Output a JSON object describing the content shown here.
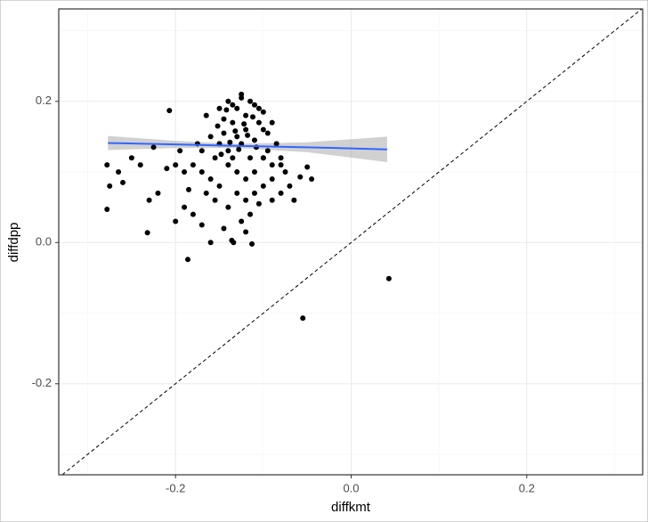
{
  "chart_data": {
    "type": "scatter",
    "x_label": "diffkmt",
    "y_label": "diffdpp",
    "xlim": [
      -0.333,
      0.332
    ],
    "ylim": [
      -0.329,
      0.331
    ],
    "xticks": [
      -0.2,
      {
        "value": 0,
        "label": "0.0"
      },
      0.2
    ],
    "yticks": [
      -0.2,
      {
        "value": 0,
        "label": "0.0"
      },
      0.2
    ],
    "grid": true,
    "color": "#000000",
    "x": [
      -0.13,
      -0.12,
      -0.14,
      -0.125,
      -0.135,
      -0.115,
      -0.145,
      -0.11,
      -0.15,
      -0.12,
      -0.13,
      -0.14,
      -0.125,
      -0.105,
      -0.1,
      -0.095,
      -0.09,
      -0.155,
      -0.16,
      -0.165,
      -0.15,
      -0.14,
      -0.13,
      -0.12,
      -0.11,
      -0.1,
      -0.105,
      -0.115,
      -0.135,
      -0.145,
      -0.128,
      -0.118,
      -0.138,
      -0.108,
      -0.148,
      -0.122,
      -0.132,
      -0.112,
      -0.142,
      -0.152,
      -0.085,
      -0.08,
      -0.075,
      -0.09,
      -0.17,
      -0.175,
      -0.18,
      -0.17,
      -0.16,
      -0.15,
      -0.13,
      -0.12,
      -0.11,
      -0.1,
      -0.09,
      -0.07,
      -0.065,
      -0.08,
      -0.14,
      -0.125,
      -0.115,
      -0.105,
      -0.155,
      -0.165,
      -0.19,
      -0.2,
      -0.195,
      -0.21,
      -0.22,
      -0.23,
      -0.24,
      -0.25,
      -0.26,
      -0.265,
      -0.225,
      -0.185,
      -0.19,
      -0.2,
      -0.18,
      -0.17,
      -0.145,
      -0.12,
      -0.1,
      -0.095,
      -0.125,
      -0.135,
      -0.11,
      -0.1,
      -0.09,
      -0.08,
      0.043,
      -0.055,
      -0.186,
      -0.278,
      -0.275,
      -0.278,
      -0.232,
      -0.207,
      -0.058,
      -0.045,
      -0.05,
      -0.16,
      -0.136,
      -0.113,
      -0.134
    ],
    "values": [
      0.15,
      0.16,
      0.13,
      0.14,
      0.17,
      0.12,
      0.155,
      0.145,
      0.14,
      0.18,
      0.19,
      0.2,
      0.21,
      0.19,
      0.16,
      0.13,
      0.11,
      0.12,
      0.15,
      0.18,
      0.19,
      0.11,
      0.1,
      0.09,
      0.1,
      0.12,
      0.17,
      0.2,
      0.12,
      0.175,
      0.132,
      0.152,
      0.142,
      0.135,
      0.125,
      0.168,
      0.158,
      0.178,
      0.188,
      0.165,
      0.14,
      0.12,
      0.1,
      0.17,
      0.13,
      0.14,
      0.11,
      0.1,
      0.09,
      0.08,
      0.07,
      0.06,
      0.07,
      0.08,
      0.09,
      0.08,
      0.06,
      0.07,
      0.05,
      0.03,
      0.04,
      0.055,
      0.06,
      0.07,
      0.1,
      0.11,
      0.13,
      0.105,
      0.07,
      0.06,
      0.11,
      0.12,
      0.085,
      0.1,
      0.135,
      0.075,
      0.05,
      0.03,
      0.04,
      0.025,
      0.02,
      0.015,
      0.12,
      0.155,
      0.205,
      0.195,
      0.195,
      0.185,
      0.06,
      0.11,
      -0.051,
      -0.107,
      -0.024,
      0.047,
      0.08,
      0.11,
      0.014,
      0.187,
      0.093,
      0.09,
      0.107,
      0.0,
      0.003,
      -0.002,
      0.0
    ],
    "smooth": {
      "color": "#3366ff",
      "band_color": "#999999",
      "x": [
        -0.277,
        -0.2,
        -0.13,
        -0.05,
        0.041
      ],
      "values": [
        0.141,
        0.139,
        0.137,
        0.135,
        0.132
      ],
      "lower": [
        0.131,
        0.134,
        0.134,
        0.128,
        0.114
      ],
      "upper": [
        0.151,
        0.144,
        0.14,
        0.142,
        0.15
      ]
    }
  }
}
